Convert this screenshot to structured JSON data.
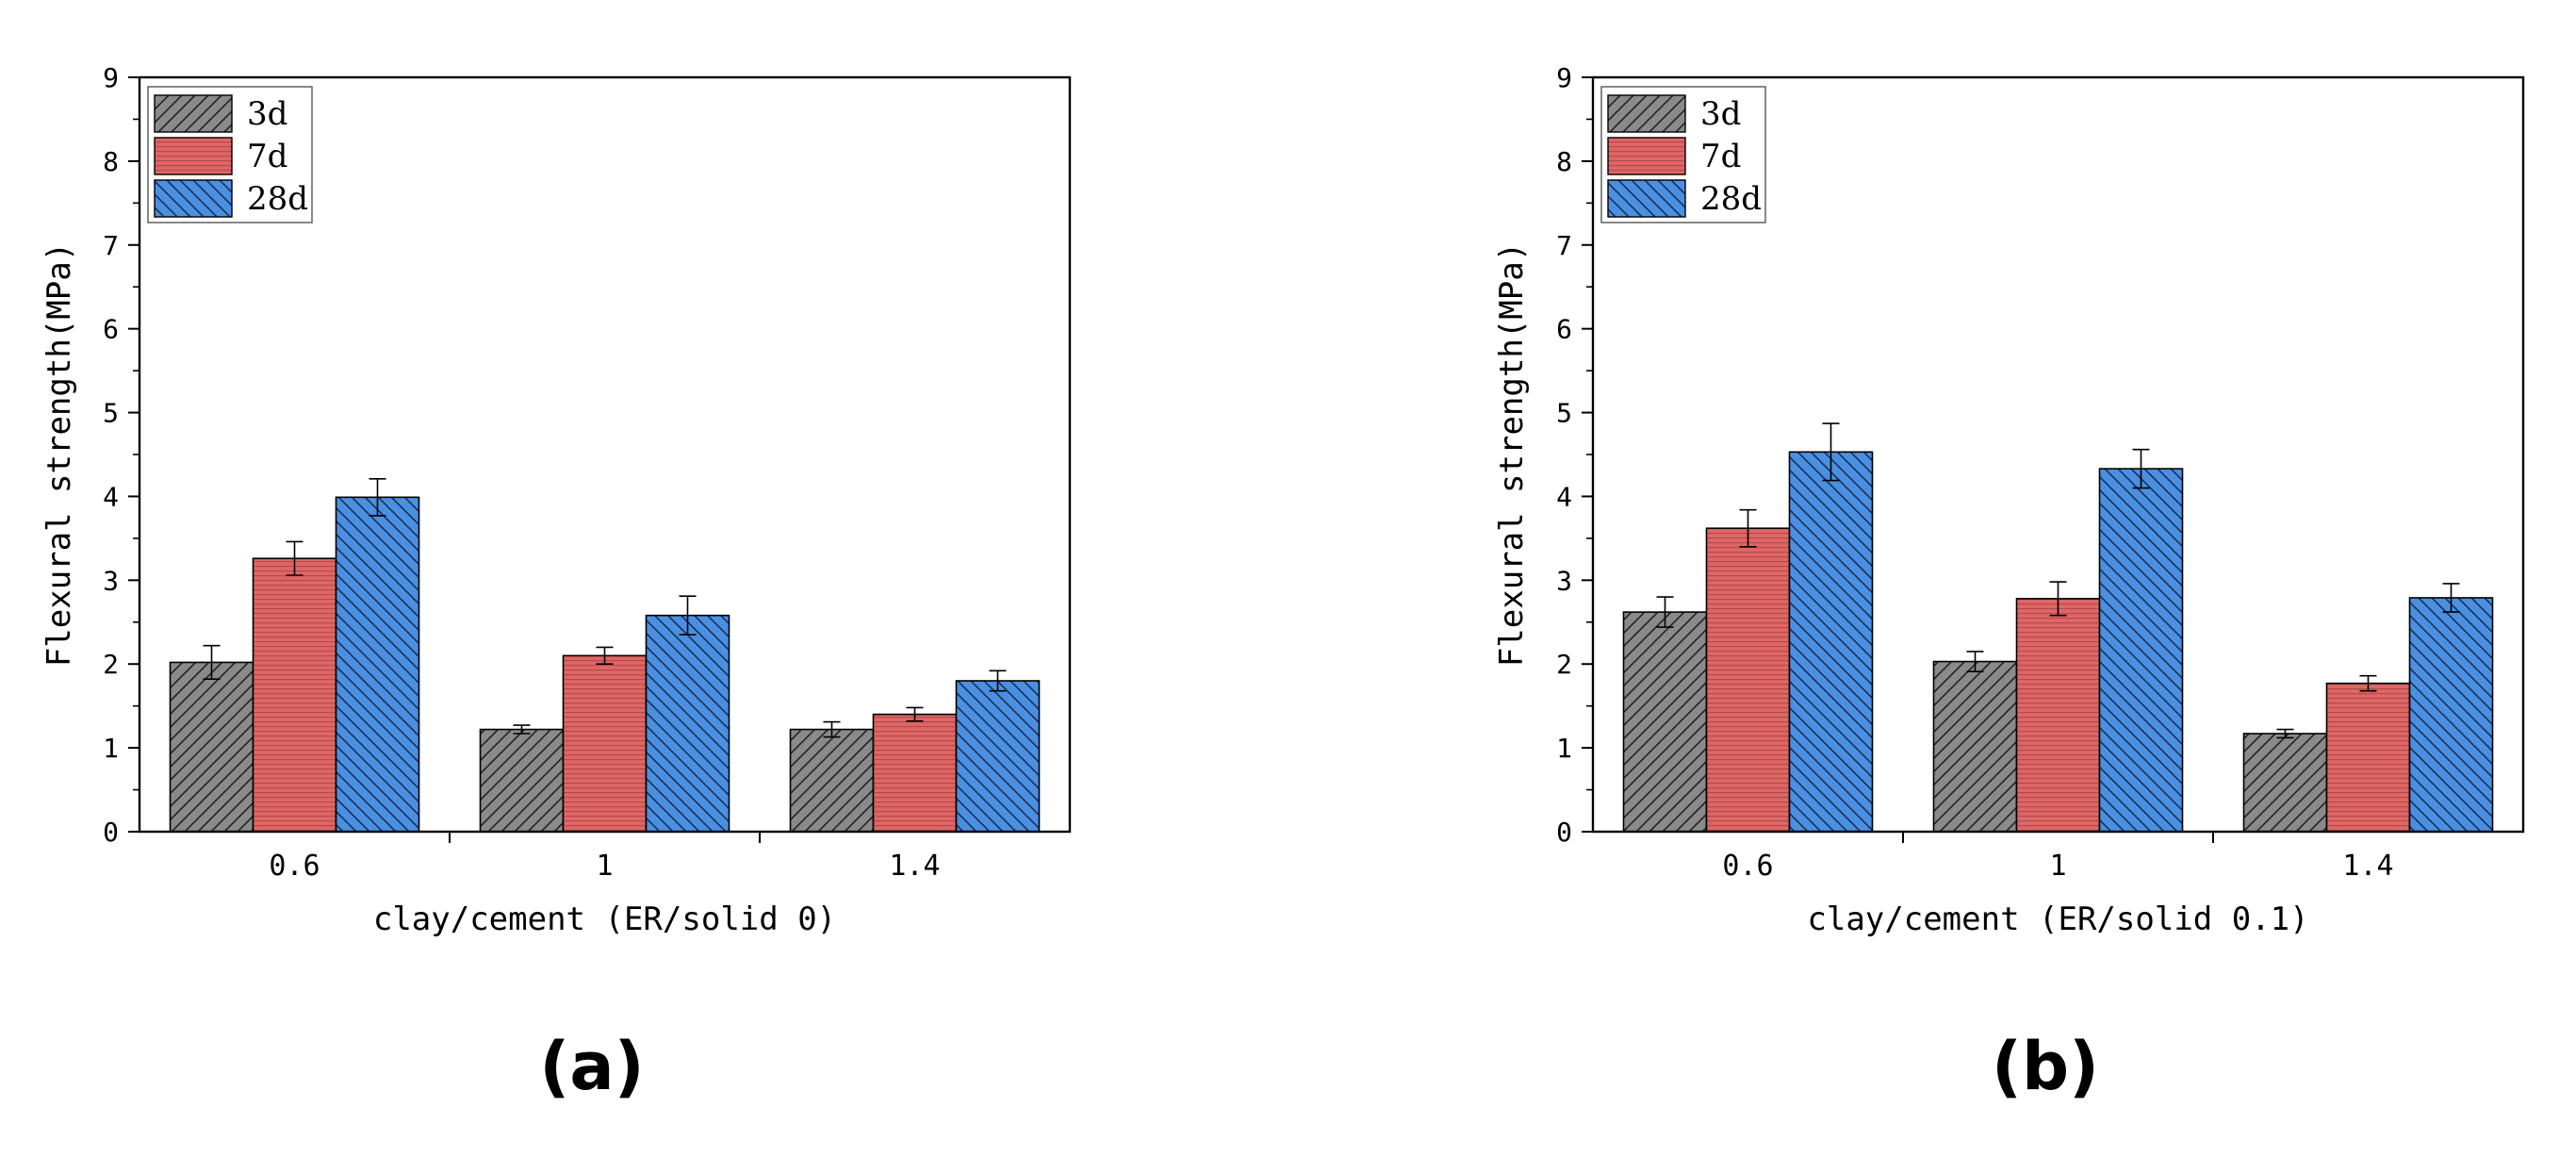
{
  "colors": {
    "series_3d": "#8a8a8a",
    "series_7d": "#e06666",
    "series_28d": "#4a90e2",
    "axis": "#000000"
  },
  "chart_data": [
    {
      "type": "bar",
      "panel_label": "(a)",
      "categories": [
        "0.6",
        "1",
        "1.4"
      ],
      "series": [
        {
          "name": "3d",
          "values": [
            2.02,
            1.22,
            1.22
          ],
          "errors": [
            0.2,
            0.05,
            0.09
          ],
          "pattern": "diagonal-up",
          "color": "#8a8a8a"
        },
        {
          "name": "7d",
          "values": [
            3.26,
            2.1,
            1.4
          ],
          "errors": [
            0.2,
            0.1,
            0.08
          ],
          "pattern": "horizontal-lines",
          "color": "#e06666"
        },
        {
          "name": "28d",
          "values": [
            3.99,
            2.58,
            1.8
          ],
          "errors": [
            0.22,
            0.23,
            0.12
          ],
          "pattern": "diagonal-down",
          "color": "#4a90e2"
        }
      ],
      "xlabel": "clay/cement (ER/solid 0)",
      "ylabel": "Flexural strength(MPa)",
      "ylim": [
        0,
        9
      ],
      "yticks": [
        "0",
        "1",
        "2",
        "3",
        "4",
        "5",
        "6",
        "7",
        "8",
        "9"
      ],
      "legend": "top-left",
      "grid": false
    },
    {
      "type": "bar",
      "panel_label": "(b)",
      "categories": [
        "0.6",
        "1",
        "1.4"
      ],
      "series": [
        {
          "name": "3d",
          "values": [
            2.62,
            2.03,
            1.17
          ],
          "errors": [
            0.18,
            0.12,
            0.05
          ],
          "pattern": "diagonal-up",
          "color": "#8a8a8a"
        },
        {
          "name": "7d",
          "values": [
            3.62,
            2.78,
            1.77
          ],
          "errors": [
            0.22,
            0.2,
            0.09
          ],
          "pattern": "horizontal-lines",
          "color": "#e06666"
        },
        {
          "name": "28d",
          "values": [
            4.53,
            4.33,
            2.79
          ],
          "errors": [
            0.34,
            0.23,
            0.17
          ],
          "pattern": "diagonal-down",
          "color": "#4a90e2"
        }
      ],
      "xlabel": "clay/cement (ER/solid 0.1)",
      "ylabel": "Flexural strength(MPa)",
      "ylim": [
        0,
        9
      ],
      "yticks": [
        "0",
        "1",
        "2",
        "3",
        "4",
        "5",
        "6",
        "7",
        "8",
        "9"
      ],
      "legend": "top-left",
      "grid": false
    }
  ]
}
